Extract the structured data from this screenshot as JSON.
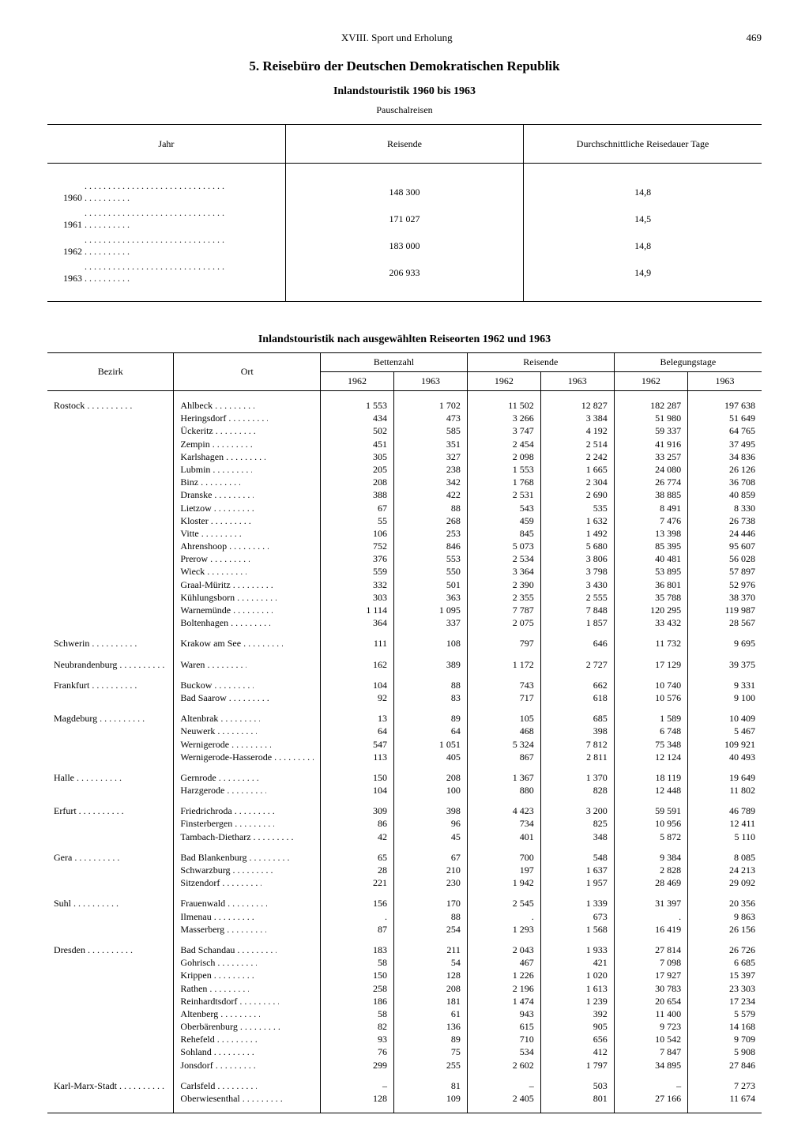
{
  "header": {
    "chapter": "XVIII. Sport und Erholung",
    "page": "469"
  },
  "section_title": "5. Reisebüro der Deutschen Demokratischen Republik",
  "table1": {
    "title": "Inlandstouristik 1960 bis 1963",
    "subtitle": "Pauschalreisen",
    "columns": [
      "Jahr",
      "Reisende",
      "Durchschnittliche Reisedauer\nTage"
    ],
    "rows": [
      [
        "1960",
        "148 300",
        "14,8"
      ],
      [
        "1961",
        "171 027",
        "14,5"
      ],
      [
        "1962",
        "183 000",
        "14,8"
      ],
      [
        "1963",
        "206 933",
        "14,9"
      ]
    ]
  },
  "table2": {
    "title": "Inlandstouristik nach ausgewählten Reiseorten 1962 und 1963",
    "top_headers": {
      "bezirk": "Bezirk",
      "ort": "Ort",
      "betten": "Bettenzahl",
      "reisende": "Reisende",
      "beleg": "Belegungstage"
    },
    "year_headers": [
      "1962",
      "1963",
      "1962",
      "1963",
      "1962",
      "1963"
    ],
    "groups": [
      {
        "bezirk": "Rostock",
        "rows": [
          [
            "Ahlbeck",
            "1 553",
            "1 702",
            "11 502",
            "12 827",
            "182 287",
            "197 638"
          ],
          [
            "Heringsdorf",
            "434",
            "473",
            "3 266",
            "3 384",
            "51 980",
            "51 649"
          ],
          [
            "Ückeritz",
            "502",
            "585",
            "3 747",
            "4 192",
            "59 337",
            "64 765"
          ],
          [
            "Zempin",
            "451",
            "351",
            "2 454",
            "2 514",
            "41 916",
            "37 495"
          ],
          [
            "Karlshagen",
            "305",
            "327",
            "2 098",
            "2 242",
            "33 257",
            "34 836"
          ],
          [
            "Lubmin",
            "205",
            "238",
            "1 553",
            "1 665",
            "24 080",
            "26 126"
          ],
          [
            "Binz",
            "208",
            "342",
            "1 768",
            "2 304",
            "26 774",
            "36 708"
          ],
          [
            "Dranske",
            "388",
            "422",
            "2 531",
            "2 690",
            "38 885",
            "40 859"
          ],
          [
            "Lietzow",
            "67",
            "88",
            "543",
            "535",
            "8 491",
            "8 330"
          ],
          [
            "Kloster",
            "55",
            "268",
            "459",
            "1 632",
            "7 476",
            "26 738"
          ],
          [
            "Vitte",
            "106",
            "253",
            "845",
            "1 492",
            "13 398",
            "24 446"
          ],
          [
            "Ahrenshoop",
            "752",
            "846",
            "5 073",
            "5 680",
            "85 395",
            "95 607"
          ],
          [
            "Prerow",
            "376",
            "553",
            "2 534",
            "3 806",
            "40 481",
            "56 028"
          ],
          [
            "Wieck",
            "559",
            "550",
            "3 364",
            "3 798",
            "53 895",
            "57 897"
          ],
          [
            "Graal-Müritz",
            "332",
            "501",
            "2 390",
            "3 430",
            "36 801",
            "52 976"
          ],
          [
            "Kühlungsborn",
            "303",
            "363",
            "2 355",
            "2 555",
            "35 788",
            "38 370"
          ],
          [
            "Warnemünde",
            "1 114",
            "1 095",
            "7 787",
            "7 848",
            "120 295",
            "119 987"
          ],
          [
            "Boltenhagen",
            "364",
            "337",
            "2 075",
            "1 857",
            "33 432",
            "28 567"
          ]
        ]
      },
      {
        "bezirk": "Schwerin",
        "rows": [
          [
            "Krakow am See",
            "111",
            "108",
            "797",
            "646",
            "11 732",
            "9 695"
          ]
        ]
      },
      {
        "bezirk": "Neubrandenburg",
        "rows": [
          [
            "Waren",
            "162",
            "389",
            "1 172",
            "2 727",
            "17 129",
            "39 375"
          ]
        ]
      },
      {
        "bezirk": "Frankfurt",
        "rows": [
          [
            "Buckow",
            "104",
            "88",
            "743",
            "662",
            "10 740",
            "9 331"
          ],
          [
            "Bad Saarow",
            "92",
            "83",
            "717",
            "618",
            "10 576",
            "9 100"
          ]
        ]
      },
      {
        "bezirk": "Magdeburg",
        "rows": [
          [
            "Altenbrak",
            "13",
            "89",
            "105",
            "685",
            "1 589",
            "10 409"
          ],
          [
            "Neuwerk",
            "64",
            "64",
            "468",
            "398",
            "6 748",
            "5 467"
          ],
          [
            "Wernigerode",
            "547",
            "1 051",
            "5 324",
            "7 812",
            "75 348",
            "109 921"
          ],
          [
            "Wernigerode-Hasserode",
            "113",
            "405",
            "867",
            "2 811",
            "12 124",
            "40 493"
          ]
        ]
      },
      {
        "bezirk": "Halle",
        "rows": [
          [
            "Gernrode",
            "150",
            "208",
            "1 367",
            "1 370",
            "18 119",
            "19 649"
          ],
          [
            "Harzgerode",
            "104",
            "100",
            "880",
            "828",
            "12 448",
            "11 802"
          ]
        ]
      },
      {
        "bezirk": "Erfurt",
        "rows": [
          [
            "Friedrichroda",
            "309",
            "398",
            "4 423",
            "3 200",
            "59 591",
            "46 789"
          ],
          [
            "Finsterbergen",
            "86",
            "96",
            "734",
            "825",
            "10 956",
            "12 411"
          ],
          [
            "Tambach-Dietharz",
            "42",
            "45",
            "401",
            "348",
            "5 872",
            "5 110"
          ]
        ]
      },
      {
        "bezirk": "Gera",
        "rows": [
          [
            "Bad Blankenburg",
            "65",
            "67",
            "700",
            "548",
            "9 384",
            "8 085"
          ],
          [
            "Schwarzburg",
            "28",
            "210",
            "197",
            "1 637",
            "2 828",
            "24 213"
          ],
          [
            "Sitzendorf",
            "221",
            "230",
            "1 942",
            "1 957",
            "28 469",
            "29 092"
          ]
        ]
      },
      {
        "bezirk": "Suhl",
        "rows": [
          [
            "Frauenwald",
            "156",
            "170",
            "2 545",
            "1 339",
            "31 397",
            "20 356"
          ],
          [
            "Ilmenau",
            ".",
            "88",
            ".",
            "673",
            ".",
            "9 863"
          ],
          [
            "Masserberg",
            "87",
            "254",
            "1 293",
            "1 568",
            "16 419",
            "26 156"
          ]
        ]
      },
      {
        "bezirk": "Dresden",
        "rows": [
          [
            "Bad Schandau",
            "183",
            "211",
            "2 043",
            "1 933",
            "27 814",
            "26 726"
          ],
          [
            "Gohrisch",
            "58",
            "54",
            "467",
            "421",
            "7 098",
            "6 685"
          ],
          [
            "Krippen",
            "150",
            "128",
            "1 226",
            "1 020",
            "17 927",
            "15 397"
          ],
          [
            "Rathen",
            "258",
            "208",
            "2 196",
            "1 613",
            "30 783",
            "23 303"
          ],
          [
            "Reinhardtsdorf",
            "186",
            "181",
            "1 474",
            "1 239",
            "20 654",
            "17 234"
          ],
          [
            "Altenberg",
            "58",
            "61",
            "943",
            "392",
            "11 400",
            "5 579"
          ],
          [
            "Oberbärenburg",
            "82",
            "136",
            "615",
            "905",
            "9 723",
            "14 168"
          ],
          [
            "Rehefeld",
            "93",
            "89",
            "710",
            "656",
            "10 542",
            "9 709"
          ],
          [
            "Sohland",
            "76",
            "75",
            "534",
            "412",
            "7 847",
            "5 908"
          ],
          [
            "Jonsdorf",
            "299",
            "255",
            "2 602",
            "1 797",
            "34 895",
            "27 846"
          ]
        ]
      },
      {
        "bezirk": "Karl-Marx-Stadt",
        "rows": [
          [
            "Carlsfeld",
            "–",
            "81",
            "–",
            "503",
            "–",
            "7 273"
          ],
          [
            "Oberwiesenthal",
            "128",
            "109",
            "2 405",
            "801",
            "27 166",
            "11 674"
          ]
        ]
      }
    ]
  }
}
